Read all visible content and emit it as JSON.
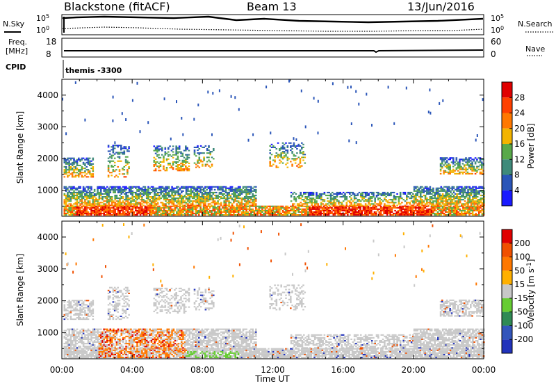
{
  "header": {
    "station": "Blackstone (fitACF)",
    "beam": "Beam 13",
    "date": "13/Jun/2016"
  },
  "top_panel": {
    "left_label": "N.Sky",
    "left_ticks": [
      "10^5",
      "10^0"
    ],
    "right_label": "N.Search",
    "right_ticks": [
      "10^5",
      "10^0"
    ]
  },
  "freq_panel": {
    "left_label_1": "Freq.",
    "left_label_2": "[MHz]",
    "left_ticks": [
      "18",
      "8"
    ],
    "right_label": "Nave",
    "right_ticks": [
      "60",
      "0"
    ],
    "cpid_label": "CPID",
    "cpid_value": "themis -3300"
  },
  "chart_data": [
    {
      "type": "heatmap",
      "title": "",
      "ylabel": "Slant Range [km]",
      "xlabel": "",
      "ylim": [
        180,
        4500
      ],
      "y_ticks": [
        1000,
        2000,
        3000,
        4000
      ],
      "x_ticks": [
        "00:00",
        "04:00",
        "08:00",
        "12:00",
        "16:00",
        "20:00",
        "00:00"
      ],
      "colorbar": {
        "label": "Power [dB]",
        "ticks": [
          "4",
          "8",
          "12",
          "16",
          "20",
          "24",
          "28"
        ],
        "colors": [
          "#1a1aff",
          "#2a55b8",
          "#3f8a7a",
          "#59a94a",
          "#f3b400",
          "#ff7800",
          "#ff4000",
          "#e00000"
        ]
      }
    },
    {
      "type": "heatmap",
      "title": "",
      "ylabel": "Slant Range [km]",
      "xlabel": "Time UT",
      "ylim": [
        180,
        4500
      ],
      "y_ticks": [
        1000,
        2000,
        3000,
        4000
      ],
      "x_ticks": [
        "00:00",
        "04:00",
        "08:00",
        "12:00",
        "16:00",
        "20:00",
        "00:00"
      ],
      "colorbar": {
        "label": "Velocity [m s^-1]",
        "ticks": [
          "200",
          "100",
          "50",
          "15",
          "-15",
          "-50",
          "-100",
          "-200"
        ],
        "colors": [
          "#2233bb",
          "#3355bb",
          "#2f8a55",
          "#66cc33",
          "#c8c8c8",
          "#ffb000",
          "#ff7800",
          "#f05000",
          "#e00000"
        ]
      }
    }
  ]
}
